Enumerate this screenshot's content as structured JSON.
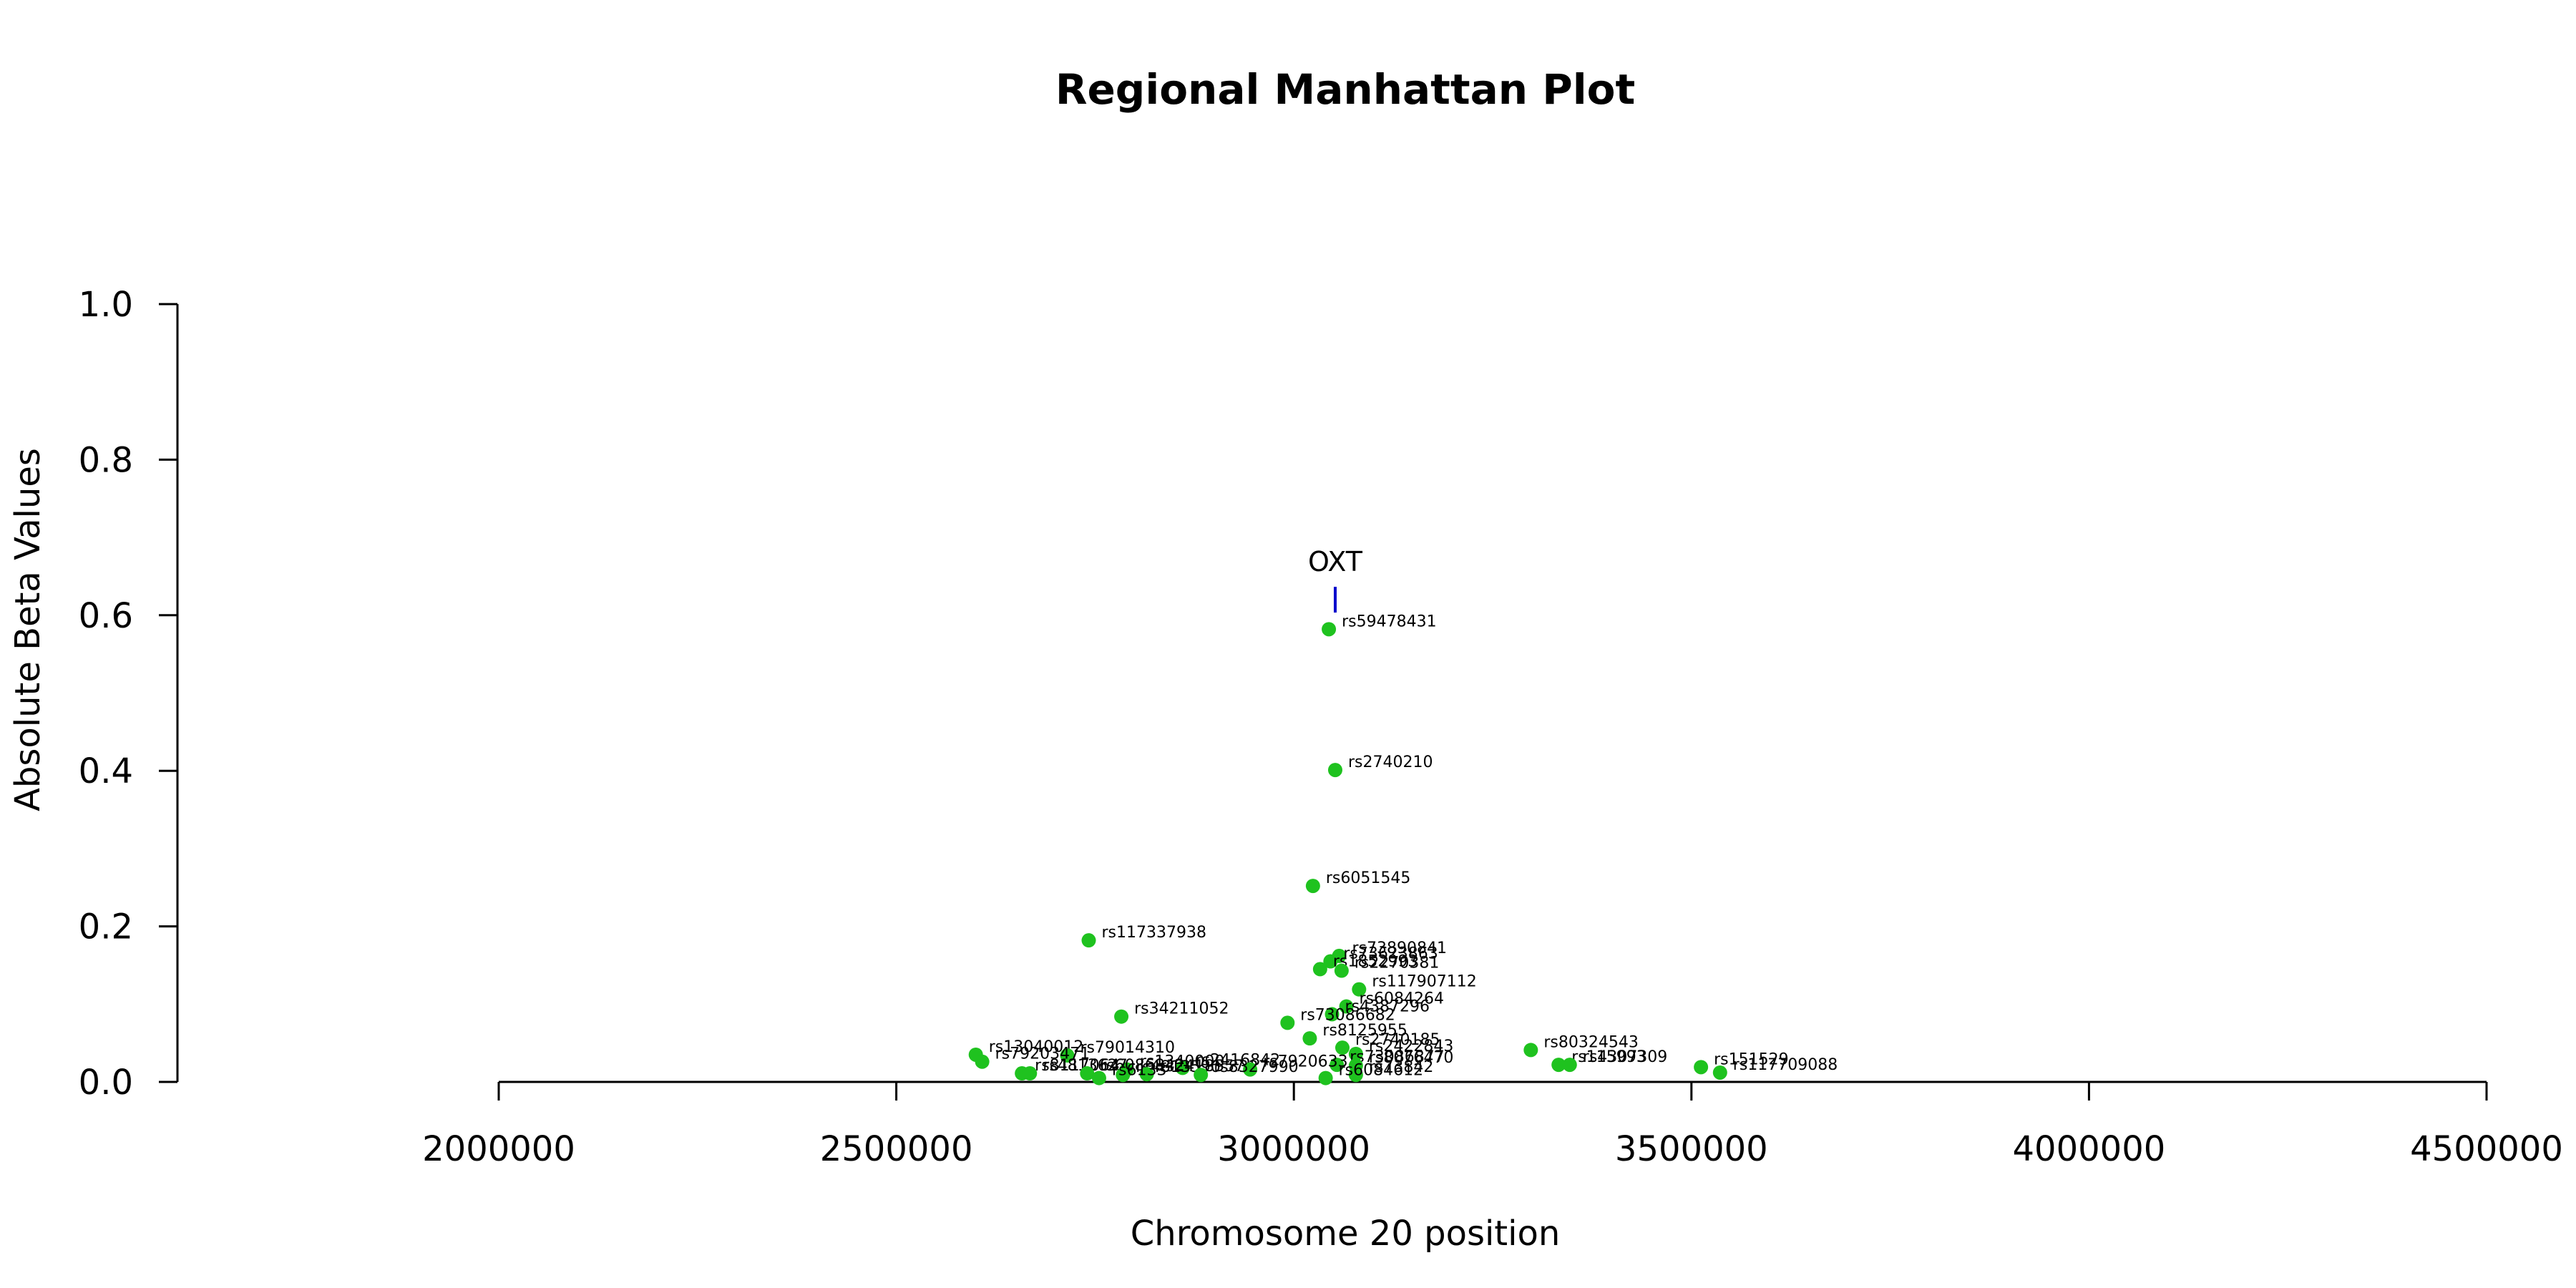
{
  "chart_data": {
    "type": "scatter",
    "title": "Regional Manhattan Plot",
    "xlabel": "Chromosome 20 position",
    "ylabel": "Absolute Beta Values",
    "xlim": [
      2000000,
      4500000
    ],
    "ylim": [
      0,
      1.0
    ],
    "x_ticks": [
      2000000,
      2500000,
      3000000,
      3500000,
      4000000,
      4500000
    ],
    "y_ticks": [
      0.0,
      0.2,
      0.4,
      0.6,
      0.8,
      1.0
    ],
    "x_tick_labels": [
      "2000000",
      "2500000",
      "3000000",
      "3500000",
      "4000000",
      "4500000"
    ],
    "y_tick_labels": [
      "0.0",
      "0.2",
      "0.4",
      "0.6",
      "0.8",
      "1.0"
    ],
    "point_color": "#1fc21f",
    "gene_marker_color": "#0000cc",
    "gene": {
      "name": "OXT",
      "position": 3052000,
      "y": 0.62
    },
    "points": [
      {
        "label": "rs59478431",
        "x": 3044000,
        "y": 0.582
      },
      {
        "label": "rs2740210",
        "x": 3052000,
        "y": 0.401
      },
      {
        "label": "rs6051545",
        "x": 3024000,
        "y": 0.252
      },
      {
        "label": "rs117337938",
        "x": 2742000,
        "y": 0.182
      },
      {
        "label": "rs73890841",
        "x": 3057000,
        "y": 0.162
      },
      {
        "label": "rs73623863",
        "x": 3046000,
        "y": 0.155
      },
      {
        "label": "rs1852993",
        "x": 3033000,
        "y": 0.145
      },
      {
        "label": "rs2270381",
        "x": 3060000,
        "y": 0.143
      },
      {
        "label": "rs117907112",
        "x": 3082000,
        "y": 0.119
      },
      {
        "label": "rs6084264",
        "x": 3066000,
        "y": 0.097
      },
      {
        "label": "rs4387296",
        "x": 3048000,
        "y": 0.087
      },
      {
        "label": "rs34211052",
        "x": 2783000,
        "y": 0.084
      },
      {
        "label": "rs73086682",
        "x": 2992000,
        "y": 0.076
      },
      {
        "label": "rs8125955",
        "x": 3020000,
        "y": 0.056
      },
      {
        "label": "rs2740185",
        "x": 3061000,
        "y": 0.044
      },
      {
        "label": "rs2422843",
        "x": 3078000,
        "y": 0.036
      },
      {
        "label": "rs80324543",
        "x": 3298000,
        "y": 0.041
      },
      {
        "label": "rs13040012",
        "x": 2600000,
        "y": 0.035
      },
      {
        "label": "rs79014310",
        "x": 2715000,
        "y": 0.034
      },
      {
        "label": "rs79203471",
        "x": 2608000,
        "y": 0.026
      },
      {
        "label": "rs73086877",
        "x": 3054000,
        "y": 0.022
      },
      {
        "label": "rs8076470",
        "x": 3078000,
        "y": 0.021
      },
      {
        "label": "rs115993",
        "x": 3333000,
        "y": 0.022
      },
      {
        "label": "rs4307309",
        "x": 3347000,
        "y": 0.022
      },
      {
        "label": "rs151529",
        "x": 3512000,
        "y": 0.019
      },
      {
        "label": "rs2416842",
        "x": 2860000,
        "y": 0.018
      },
      {
        "label": "rs7920633",
        "x": 2945000,
        "y": 0.016
      },
      {
        "label": "rs1340000",
        "x": 2790000,
        "y": 0.016
      },
      {
        "label": "rs117709088",
        "x": 3536000,
        "y": 0.012
      },
      {
        "label": "rs8117064",
        "x": 2658000,
        "y": 0.011
      },
      {
        "label": "rs4813627",
        "x": 2668000,
        "y": 0.011
      },
      {
        "label": "rs6086842",
        "x": 2740000,
        "y": 0.011
      },
      {
        "label": "rs4813590",
        "x": 2785000,
        "y": 0.009
      },
      {
        "label": "rs2418557",
        "x": 2815000,
        "y": 0.01
      },
      {
        "label": "rs8327990",
        "x": 2883000,
        "y": 0.009
      },
      {
        "label": "rs73842",
        "x": 3078000,
        "y": 0.009
      },
      {
        "label": "rs6133",
        "x": 2755000,
        "y": 0.005
      },
      {
        "label": "rs6084612",
        "x": 3040000,
        "y": 0.005
      }
    ]
  }
}
